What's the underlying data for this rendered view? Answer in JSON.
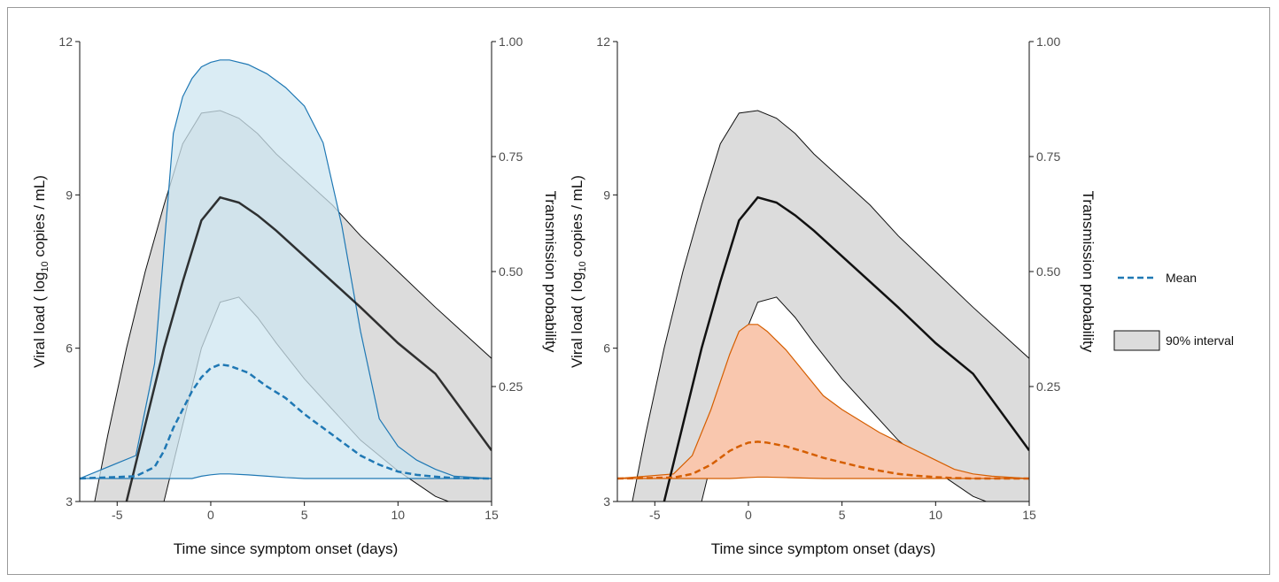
{
  "chart_data": [
    {
      "type": "line",
      "panel": "left",
      "xlabel": "Time since symptom onset (days)",
      "ylabel_left": {
        "pre": "Viral load ( log",
        "sub": "10",
        "post": " copies / mL)"
      },
      "ylabel_right": "Transmission probability",
      "xlim": [
        -7,
        15
      ],
      "ylim_left": [
        3,
        12
      ],
      "ylim_right": [
        0,
        1
      ],
      "x_ticks": [
        -5,
        0,
        5,
        10,
        15
      ],
      "x_tick_labels": [
        "-5",
        "0",
        "5",
        "10",
        "15"
      ],
      "y_left_ticks": [
        3,
        6,
        9,
        12
      ],
      "y_left_tick_labels": [
        "3",
        "6",
        "9",
        "12"
      ],
      "y_right_ticks": [
        0.25,
        0.5,
        0.75,
        1.0
      ],
      "y_right_tick_labels": [
        "0.25",
        "0.50",
        "0.75",
        "1.00"
      ],
      "viral_load": {
        "x": [
          -6.2,
          -5.5,
          -4.5,
          -3.5,
          -2.5,
          -1.5,
          -0.5,
          0.5,
          1.5,
          2.5,
          3.5,
          5,
          6.5,
          8,
          10,
          12,
          15
        ],
        "mean": [
          null,
          null,
          3.0,
          4.5,
          6.0,
          7.3,
          8.5,
          8.95,
          8.85,
          8.6,
          8.3,
          7.8,
          7.3,
          6.8,
          6.1,
          5.5,
          4.0
        ],
        "upper": [
          3.0,
          4.3,
          6.0,
          7.5,
          8.8,
          10.0,
          10.6,
          10.65,
          10.5,
          10.2,
          9.8,
          9.3,
          8.8,
          8.2,
          7.5,
          6.8,
          5.8
        ],
        "lower": [
          null,
          null,
          null,
          null,
          3.0,
          4.5,
          6.0,
          6.9,
          7.0,
          6.6,
          6.1,
          5.4,
          4.8,
          4.2,
          3.6,
          3.1,
          null
        ],
        "lower_end": [
          12.7,
          3.0
        ]
      },
      "transmission": {
        "x": [
          -7,
          -4,
          -3,
          -2.5,
          -2,
          -1.5,
          -1,
          -0.5,
          0,
          0.5,
          1,
          2,
          3,
          4,
          5,
          6,
          7,
          8,
          9,
          10,
          11,
          12,
          13,
          15
        ],
        "mean": [
          0.05,
          0.055,
          0.075,
          0.11,
          0.16,
          0.2,
          0.24,
          0.27,
          0.29,
          0.298,
          0.295,
          0.28,
          0.25,
          0.225,
          0.19,
          0.16,
          0.13,
          0.1,
          0.08,
          0.065,
          0.058,
          0.054,
          0.051,
          0.05
        ],
        "upper": [
          0.05,
          0.1,
          0.3,
          0.55,
          0.8,
          0.88,
          0.92,
          0.945,
          0.955,
          0.96,
          0.96,
          0.95,
          0.93,
          0.9,
          0.86,
          0.78,
          0.6,
          0.37,
          0.18,
          0.12,
          0.09,
          0.07,
          0.055,
          0.05
        ],
        "lower": [
          0.05,
          0.05,
          0.05,
          0.05,
          0.05,
          0.05,
          0.05,
          0.055,
          0.058,
          0.06,
          0.06,
          0.058,
          0.055,
          0.052,
          0.05,
          0.05,
          0.05,
          0.05,
          0.05,
          0.05,
          0.05,
          0.05,
          0.05,
          0.05
        ]
      },
      "colors": {
        "band": "#dcdcdc",
        "band_edge": "#111111",
        "mean_line": "#111111",
        "tp_band": "#cde6f0",
        "tp_edge": "#1f78b4",
        "tp_mean": "#1f78b4"
      }
    },
    {
      "type": "line",
      "panel": "right",
      "xlabel": "Time since symptom onset (days)",
      "ylabel_left": {
        "pre": "Viral load ( log",
        "sub": "10",
        "post": " copies / mL)"
      },
      "ylabel_right": "Transmission probability",
      "xlim": [
        -7,
        15
      ],
      "ylim_left": [
        3,
        12
      ],
      "ylim_right": [
        0,
        1
      ],
      "x_ticks": [
        -5,
        0,
        5,
        10,
        15
      ],
      "x_tick_labels": [
        "-5",
        "0",
        "5",
        "10",
        "15"
      ],
      "y_left_ticks": [
        3,
        6,
        9,
        12
      ],
      "y_left_tick_labels": [
        "3",
        "6",
        "9",
        "12"
      ],
      "y_right_ticks": [
        0.25,
        0.5,
        0.75,
        1.0
      ],
      "y_right_tick_labels": [
        "0.25",
        "0.50",
        "0.75",
        "1.00"
      ],
      "viral_load": {
        "x": [
          -6.2,
          -5.5,
          -4.5,
          -3.5,
          -2.5,
          -1.5,
          -0.5,
          0.5,
          1.5,
          2.5,
          3.5,
          5,
          6.5,
          8,
          10,
          12,
          15
        ],
        "mean": [
          null,
          null,
          3.0,
          4.5,
          6.0,
          7.3,
          8.5,
          8.95,
          8.85,
          8.6,
          8.3,
          7.8,
          7.3,
          6.8,
          6.1,
          5.5,
          4.0
        ],
        "upper": [
          3.0,
          4.3,
          6.0,
          7.5,
          8.8,
          10.0,
          10.6,
          10.65,
          10.5,
          10.2,
          9.8,
          9.3,
          8.8,
          8.2,
          7.5,
          6.8,
          5.8
        ],
        "lower": [
          null,
          null,
          null,
          null,
          3.0,
          4.5,
          6.0,
          6.9,
          7.0,
          6.6,
          6.1,
          5.4,
          4.8,
          4.2,
          3.6,
          3.1,
          null
        ],
        "lower_end": [
          12.7,
          3.0
        ]
      },
      "transmission": {
        "x": [
          -7,
          -4,
          -3,
          -2,
          -1,
          -0.5,
          0,
          0.5,
          1,
          2,
          3,
          4,
          5,
          6,
          7,
          8,
          9,
          10,
          11,
          12,
          13,
          15
        ],
        "mean": [
          0.05,
          0.052,
          0.06,
          0.08,
          0.11,
          0.12,
          0.128,
          0.13,
          0.128,
          0.12,
          0.108,
          0.095,
          0.085,
          0.075,
          0.067,
          0.06,
          0.056,
          0.053,
          0.051,
          0.05,
          0.05,
          0.05
        ],
        "upper": [
          0.05,
          0.06,
          0.1,
          0.2,
          0.32,
          0.37,
          0.385,
          0.385,
          0.37,
          0.33,
          0.28,
          0.23,
          0.2,
          0.175,
          0.15,
          0.13,
          0.11,
          0.09,
          0.07,
          0.06,
          0.055,
          0.05
        ],
        "lower": [
          0.05,
          0.05,
          0.05,
          0.05,
          0.05,
          0.051,
          0.052,
          0.053,
          0.053,
          0.052,
          0.051,
          0.05,
          0.05,
          0.05,
          0.05,
          0.05,
          0.05,
          0.05,
          0.05,
          0.05,
          0.05,
          0.05
        ]
      },
      "colors": {
        "band": "#dcdcdc",
        "band_edge": "#111111",
        "mean_line": "#111111",
        "tp_band": "#f9c7ae",
        "tp_edge": "#d55e00",
        "tp_mean": "#d55e00"
      }
    }
  ],
  "legend": {
    "mean_label": "Mean",
    "interval_label": "90% interval",
    "mean_color": "#1f78b4",
    "interval_fill": "#dcdcdc"
  }
}
